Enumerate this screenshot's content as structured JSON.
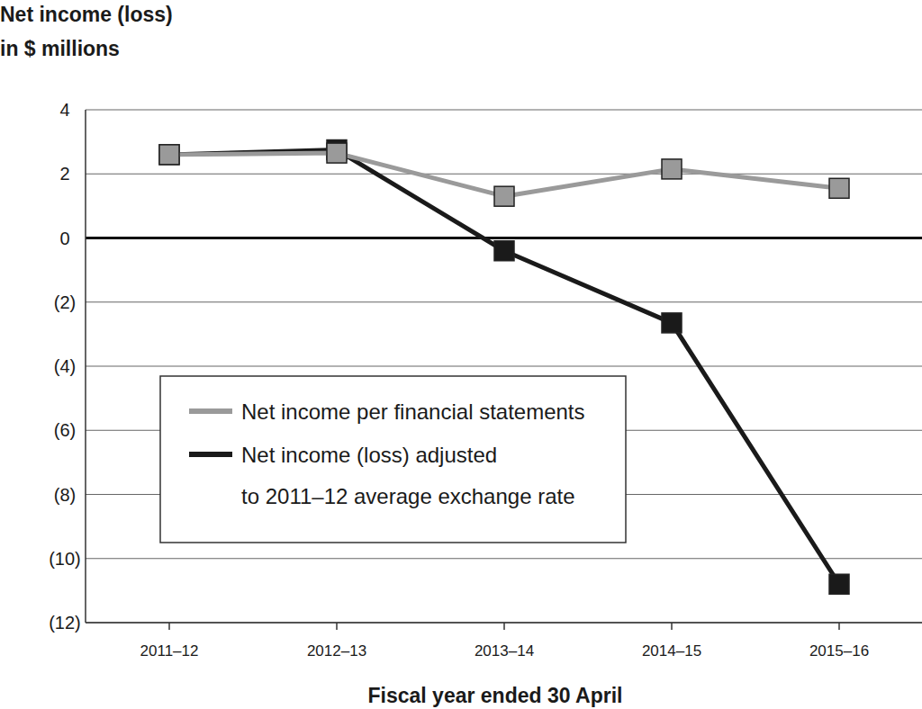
{
  "chart_data": {
    "type": "line",
    "y_label": [
      "Net income (loss)",
      "in $ millions"
    ],
    "x_label": "Fiscal year ended 30 April",
    "categories": [
      "2011–12",
      "2012–13",
      "2013–14",
      "2014–15",
      "2015–16"
    ],
    "series": [
      {
        "name": "Net income per financial statements",
        "color": "#9a9a9a",
        "marker": "square",
        "line_style": "solid",
        "values": [
          2.6,
          2.65,
          1.3,
          2.15,
          1.55
        ]
      },
      {
        "name": "Net income (loss) adjusted\nto 2011–12 average exchange rate",
        "color": "#1a1a1a",
        "marker": "square",
        "line_style": "solid",
        "values": [
          2.6,
          2.75,
          -0.4,
          -2.65,
          -10.8
        ]
      }
    ],
    "ylim": [
      -12,
      4
    ],
    "yticks": [
      4,
      2,
      0,
      {
        "value": -2,
        "label": "(2)"
      },
      {
        "value": -4,
        "label": "(4)"
      },
      {
        "value": -6,
        "label": "(6)"
      },
      {
        "value": -8,
        "label": "(8)"
      },
      {
        "value": -10,
        "label": "(10)"
      },
      {
        "value": -12,
        "label": "(12)"
      }
    ],
    "grid": true,
    "legend": "lower left"
  }
}
